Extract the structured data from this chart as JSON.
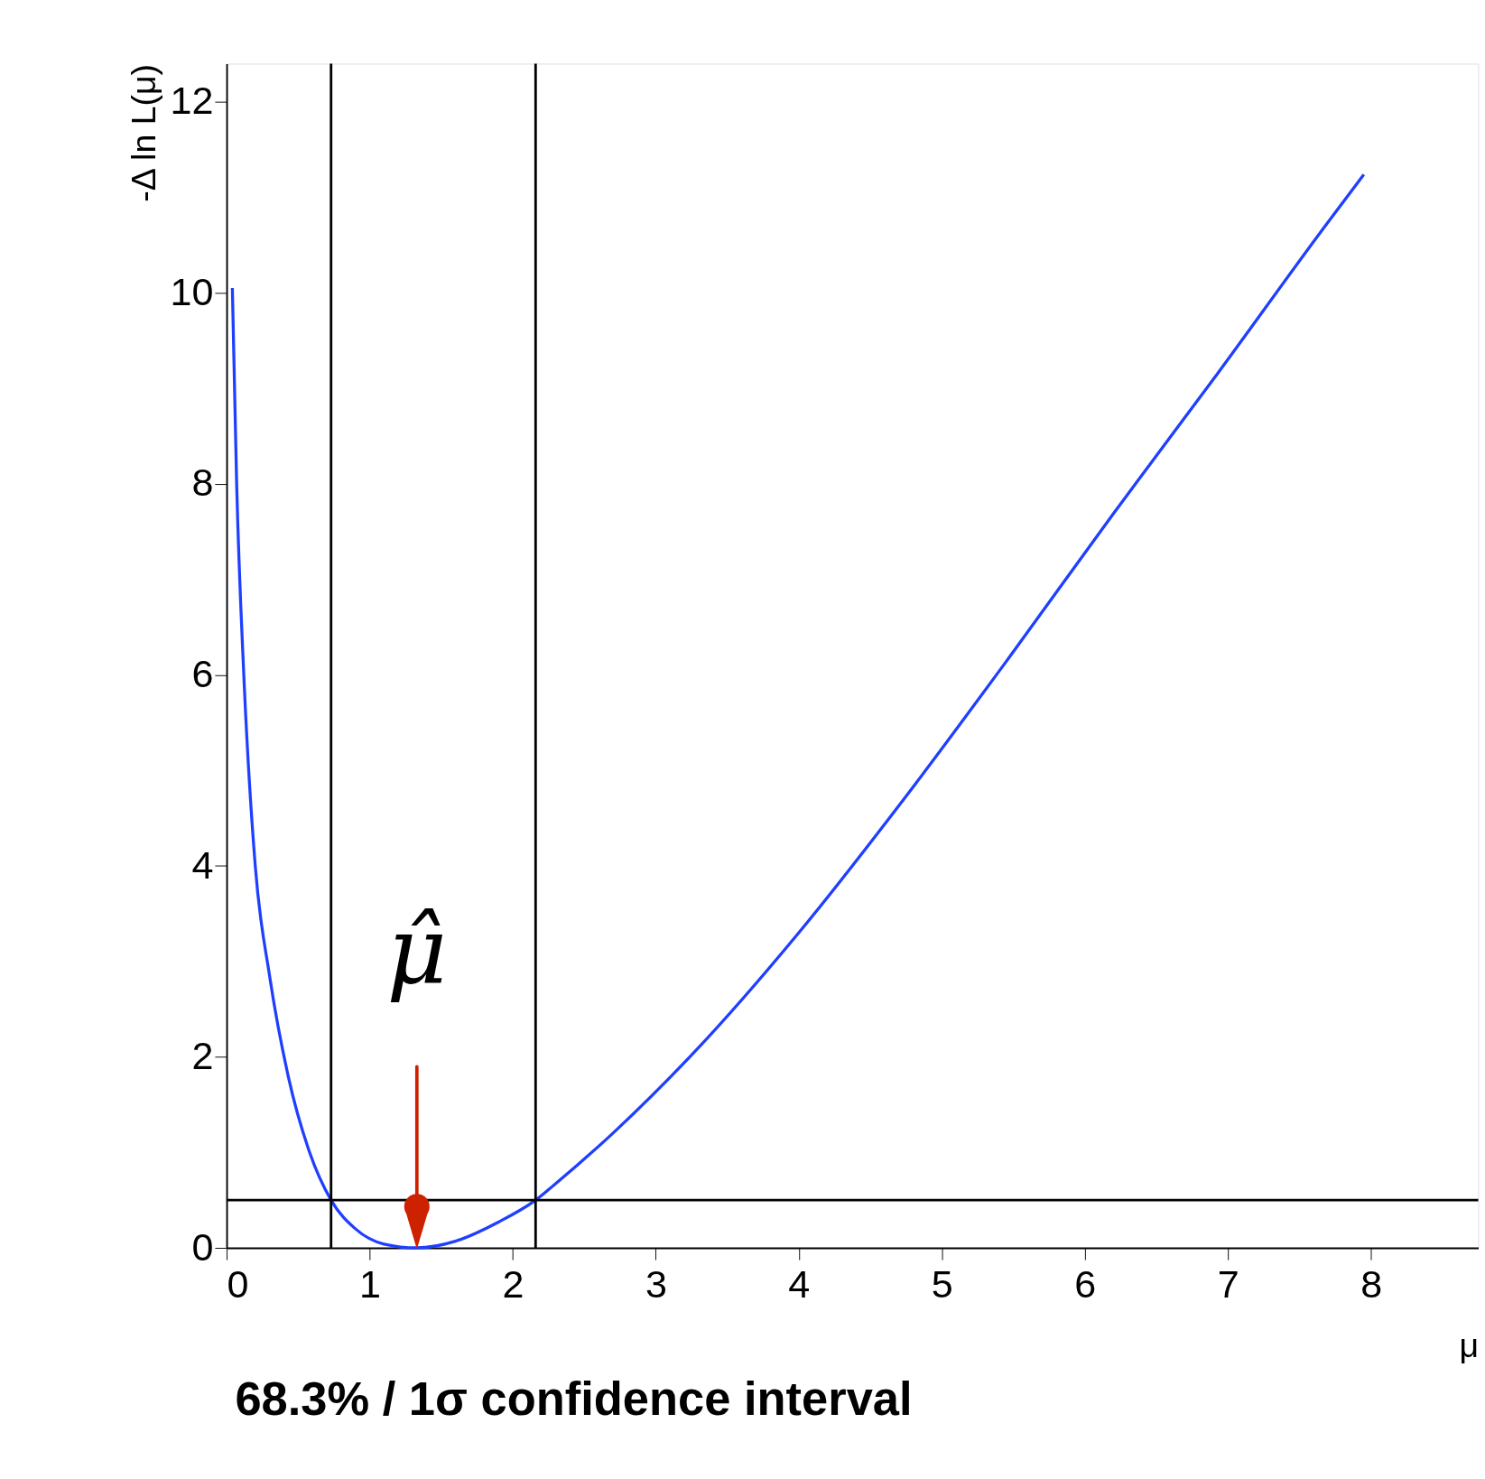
{
  "chart_data": {
    "type": "line",
    "xlabel": "μ",
    "ylabel": "-Δ ln L(μ)",
    "series": [
      {
        "color": "#1f3fff",
        "x": [
          0.04,
          0.07,
          0.12,
          0.2,
          0.3,
          0.43,
          0.58,
          0.73,
          0.9,
          1.1,
          1.33,
          1.6,
          1.9,
          2.16,
          2.29,
          2.7,
          3.27,
          4.0,
          4.73,
          5.46,
          6.2,
          6.93,
          7.66,
          7.95
        ],
        "values": [
          10.05,
          8.0,
          6.0,
          4.0,
          2.85,
          1.8,
          1.0,
          0.5,
          0.2,
          0.04,
          0,
          0.07,
          0.27,
          0.5,
          0.66,
          1.2,
          2.05,
          3.3,
          4.69,
          6.16,
          7.69,
          9.16,
          10.66,
          11.24
        ]
      }
    ],
    "xlim": [
      0,
      8.75
    ],
    "ylim": [
      0,
      12.4
    ],
    "xticks": [
      0,
      1,
      2,
      3,
      4,
      5,
      6,
      7,
      8
    ],
    "yticks": [
      0,
      2,
      4,
      6,
      8,
      10,
      12
    ],
    "ref_lines": [
      {
        "axis": "y",
        "value": 0.5,
        "color": "#000000"
      },
      {
        "axis": "x",
        "value": 0.73,
        "color": "#000000"
      },
      {
        "axis": "x",
        "value": 2.16,
        "color": "#000000"
      }
    ],
    "annotations": [
      {
        "text": "μ̂",
        "x": 1.33,
        "y": 0
      },
      "68.3% / 1σ confidence interval"
    ],
    "grid": false,
    "marker": "none",
    "line_style": "solid"
  }
}
